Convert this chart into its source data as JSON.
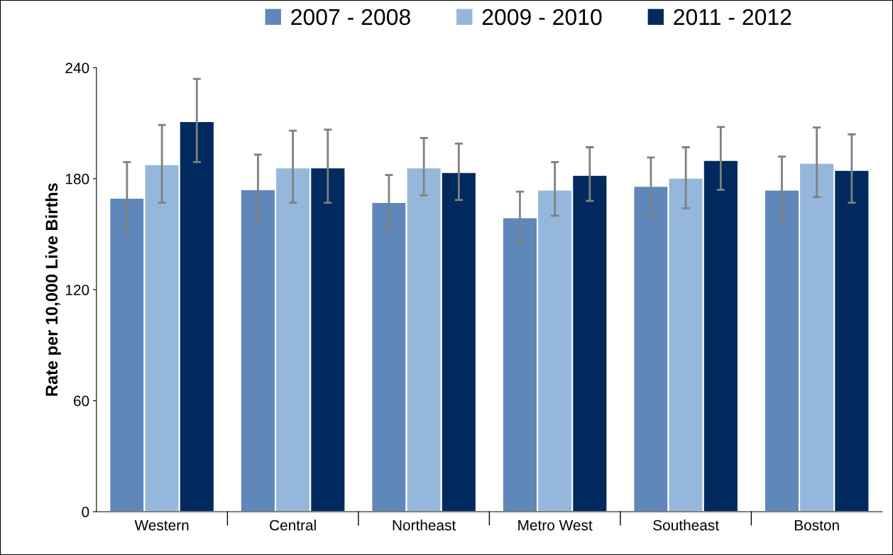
{
  "chart_data": {
    "type": "bar",
    "ylabel": "Rate per 10,000 Live Births",
    "categories": [
      "Western",
      "Central",
      "Northeast",
      "Metro West",
      "Southeast",
      "Boston"
    ],
    "series": [
      {
        "name": "2007 - 2008",
        "color": "#5f87b9",
        "values": [
          169.6,
          174.2,
          167.3,
          159,
          176,
          174
        ],
        "errors": [
          [
            151,
            189
          ],
          [
            156,
            193
          ],
          [
            153,
            182
          ],
          [
            146,
            173
          ],
          [
            160,
            191.5
          ],
          [
            156,
            192
          ]
        ]
      },
      {
        "name": "2009 - 2010",
        "color": "#95b7db",
        "values": [
          187.7,
          186,
          186,
          174,
          180.4,
          188.5
        ],
        "errors": [
          [
            167,
            209
          ],
          [
            167,
            206
          ],
          [
            171,
            202
          ],
          [
            160,
            189
          ],
          [
            164,
            197
          ],
          [
            170,
            207.7
          ]
        ]
      },
      {
        "name": "2011 - 2012",
        "color": "#022a5e",
        "values": [
          211,
          186,
          183.5,
          182,
          190,
          184.6
        ],
        "errors": [
          [
            189,
            234
          ],
          [
            167,
            206.5
          ],
          [
            168.5,
            199
          ],
          [
            168,
            197
          ],
          [
            174,
            208
          ],
          [
            167,
            204
          ]
        ]
      }
    ],
    "ylim": [
      0,
      240
    ],
    "yticks": [
      0,
      60,
      120,
      180,
      240
    ],
    "grid": false,
    "legend": "top"
  }
}
